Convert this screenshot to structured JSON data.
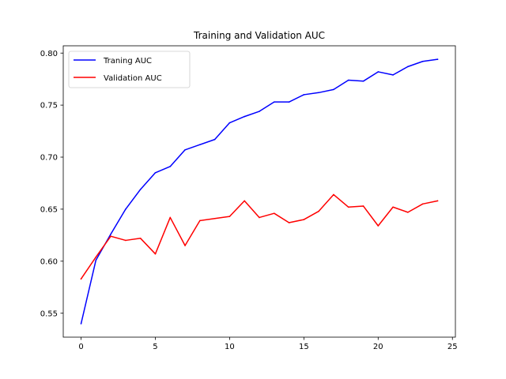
{
  "chart_data": {
    "type": "line",
    "title": "Training and Validation AUC",
    "xlabel": "",
    "ylabel": "",
    "x": [
      0,
      1,
      2,
      3,
      4,
      5,
      6,
      7,
      8,
      9,
      10,
      11,
      12,
      13,
      14,
      15,
      16,
      17,
      18,
      19,
      20,
      21,
      22,
      23,
      24
    ],
    "xlim": [
      -1.2,
      25.2
    ],
    "ylim": [
      0.527,
      0.807
    ],
    "xticks": [
      0,
      5,
      10,
      15,
      20,
      25
    ],
    "yticks": [
      0.55,
      0.6,
      0.65,
      0.7,
      0.75,
      0.8
    ],
    "ytick_labels": [
      "0.55",
      "0.60",
      "0.65",
      "0.70",
      "0.75",
      "0.80"
    ],
    "grid": false,
    "legend_position": "upper-left",
    "series": [
      {
        "name": "Traning AUC",
        "color": "#0000ff",
        "values": [
          0.54,
          0.601,
          0.626,
          0.65,
          0.669,
          0.685,
          0.691,
          0.707,
          0.712,
          0.717,
          0.733,
          0.739,
          0.744,
          0.753,
          0.753,
          0.76,
          0.762,
          0.765,
          0.774,
          0.773,
          0.782,
          0.779,
          0.787,
          0.792,
          0.794
        ]
      },
      {
        "name": "Validation AUC",
        "color": "#ff0000",
        "values": [
          0.583,
          0.604,
          0.624,
          0.62,
          0.622,
          0.607,
          0.642,
          0.615,
          0.639,
          0.641,
          0.643,
          0.658,
          0.642,
          0.646,
          0.637,
          0.64,
          0.648,
          0.664,
          0.652,
          0.653,
          0.634,
          0.652,
          0.647,
          0.655,
          0.658
        ]
      }
    ]
  }
}
